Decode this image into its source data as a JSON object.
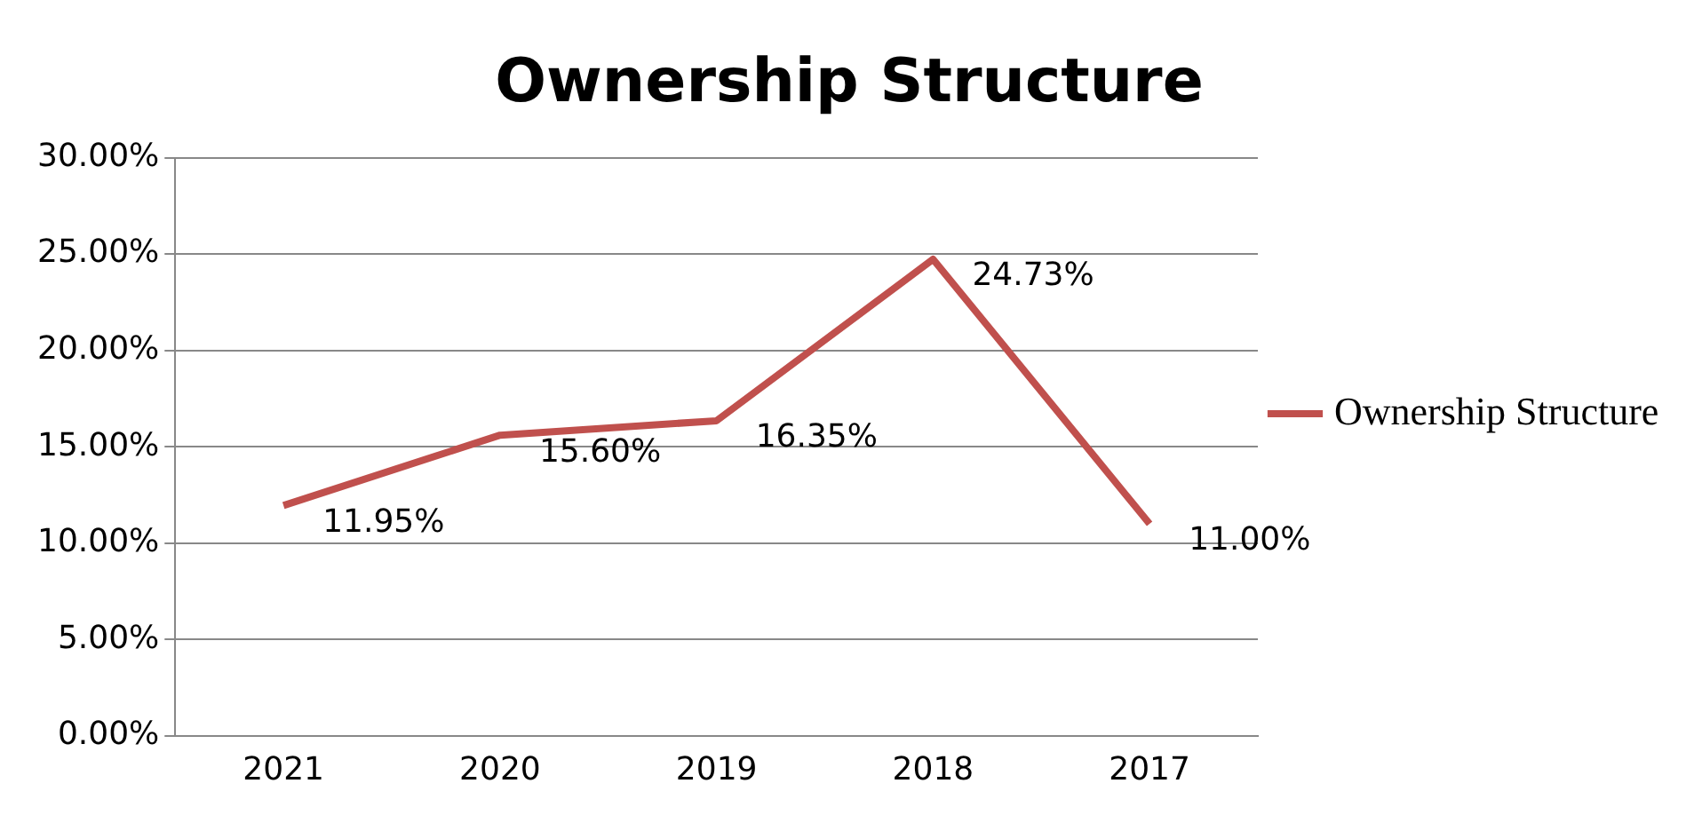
{
  "chart_data": {
    "type": "line",
    "title": "Ownership Structure",
    "categories": [
      "2021",
      "2020",
      "2019",
      "2018",
      "2017"
    ],
    "series": [
      {
        "name": "Ownership Structure",
        "color": "#c0504d",
        "values": [
          11.95,
          15.6,
          16.35,
          24.73,
          11.0
        ],
        "value_labels": [
          "11.95%",
          "15.60%",
          "16.35%",
          "24.73%",
          "11.00%"
        ]
      }
    ],
    "ylim": [
      0,
      30
    ],
    "yticks": [
      {
        "value": 0,
        "label": "0.00%"
      },
      {
        "value": 5,
        "label": "5.00%"
      },
      {
        "value": 10,
        "label": "10.00%"
      },
      {
        "value": 15,
        "label": "15.00%"
      },
      {
        "value": 20,
        "label": "20.00%"
      },
      {
        "value": 25,
        "label": "25.00%"
      },
      {
        "value": 30,
        "label": "30.00%"
      }
    ],
    "grid": "y",
    "legend": "right",
    "marker": "none",
    "line_style": "solid"
  }
}
